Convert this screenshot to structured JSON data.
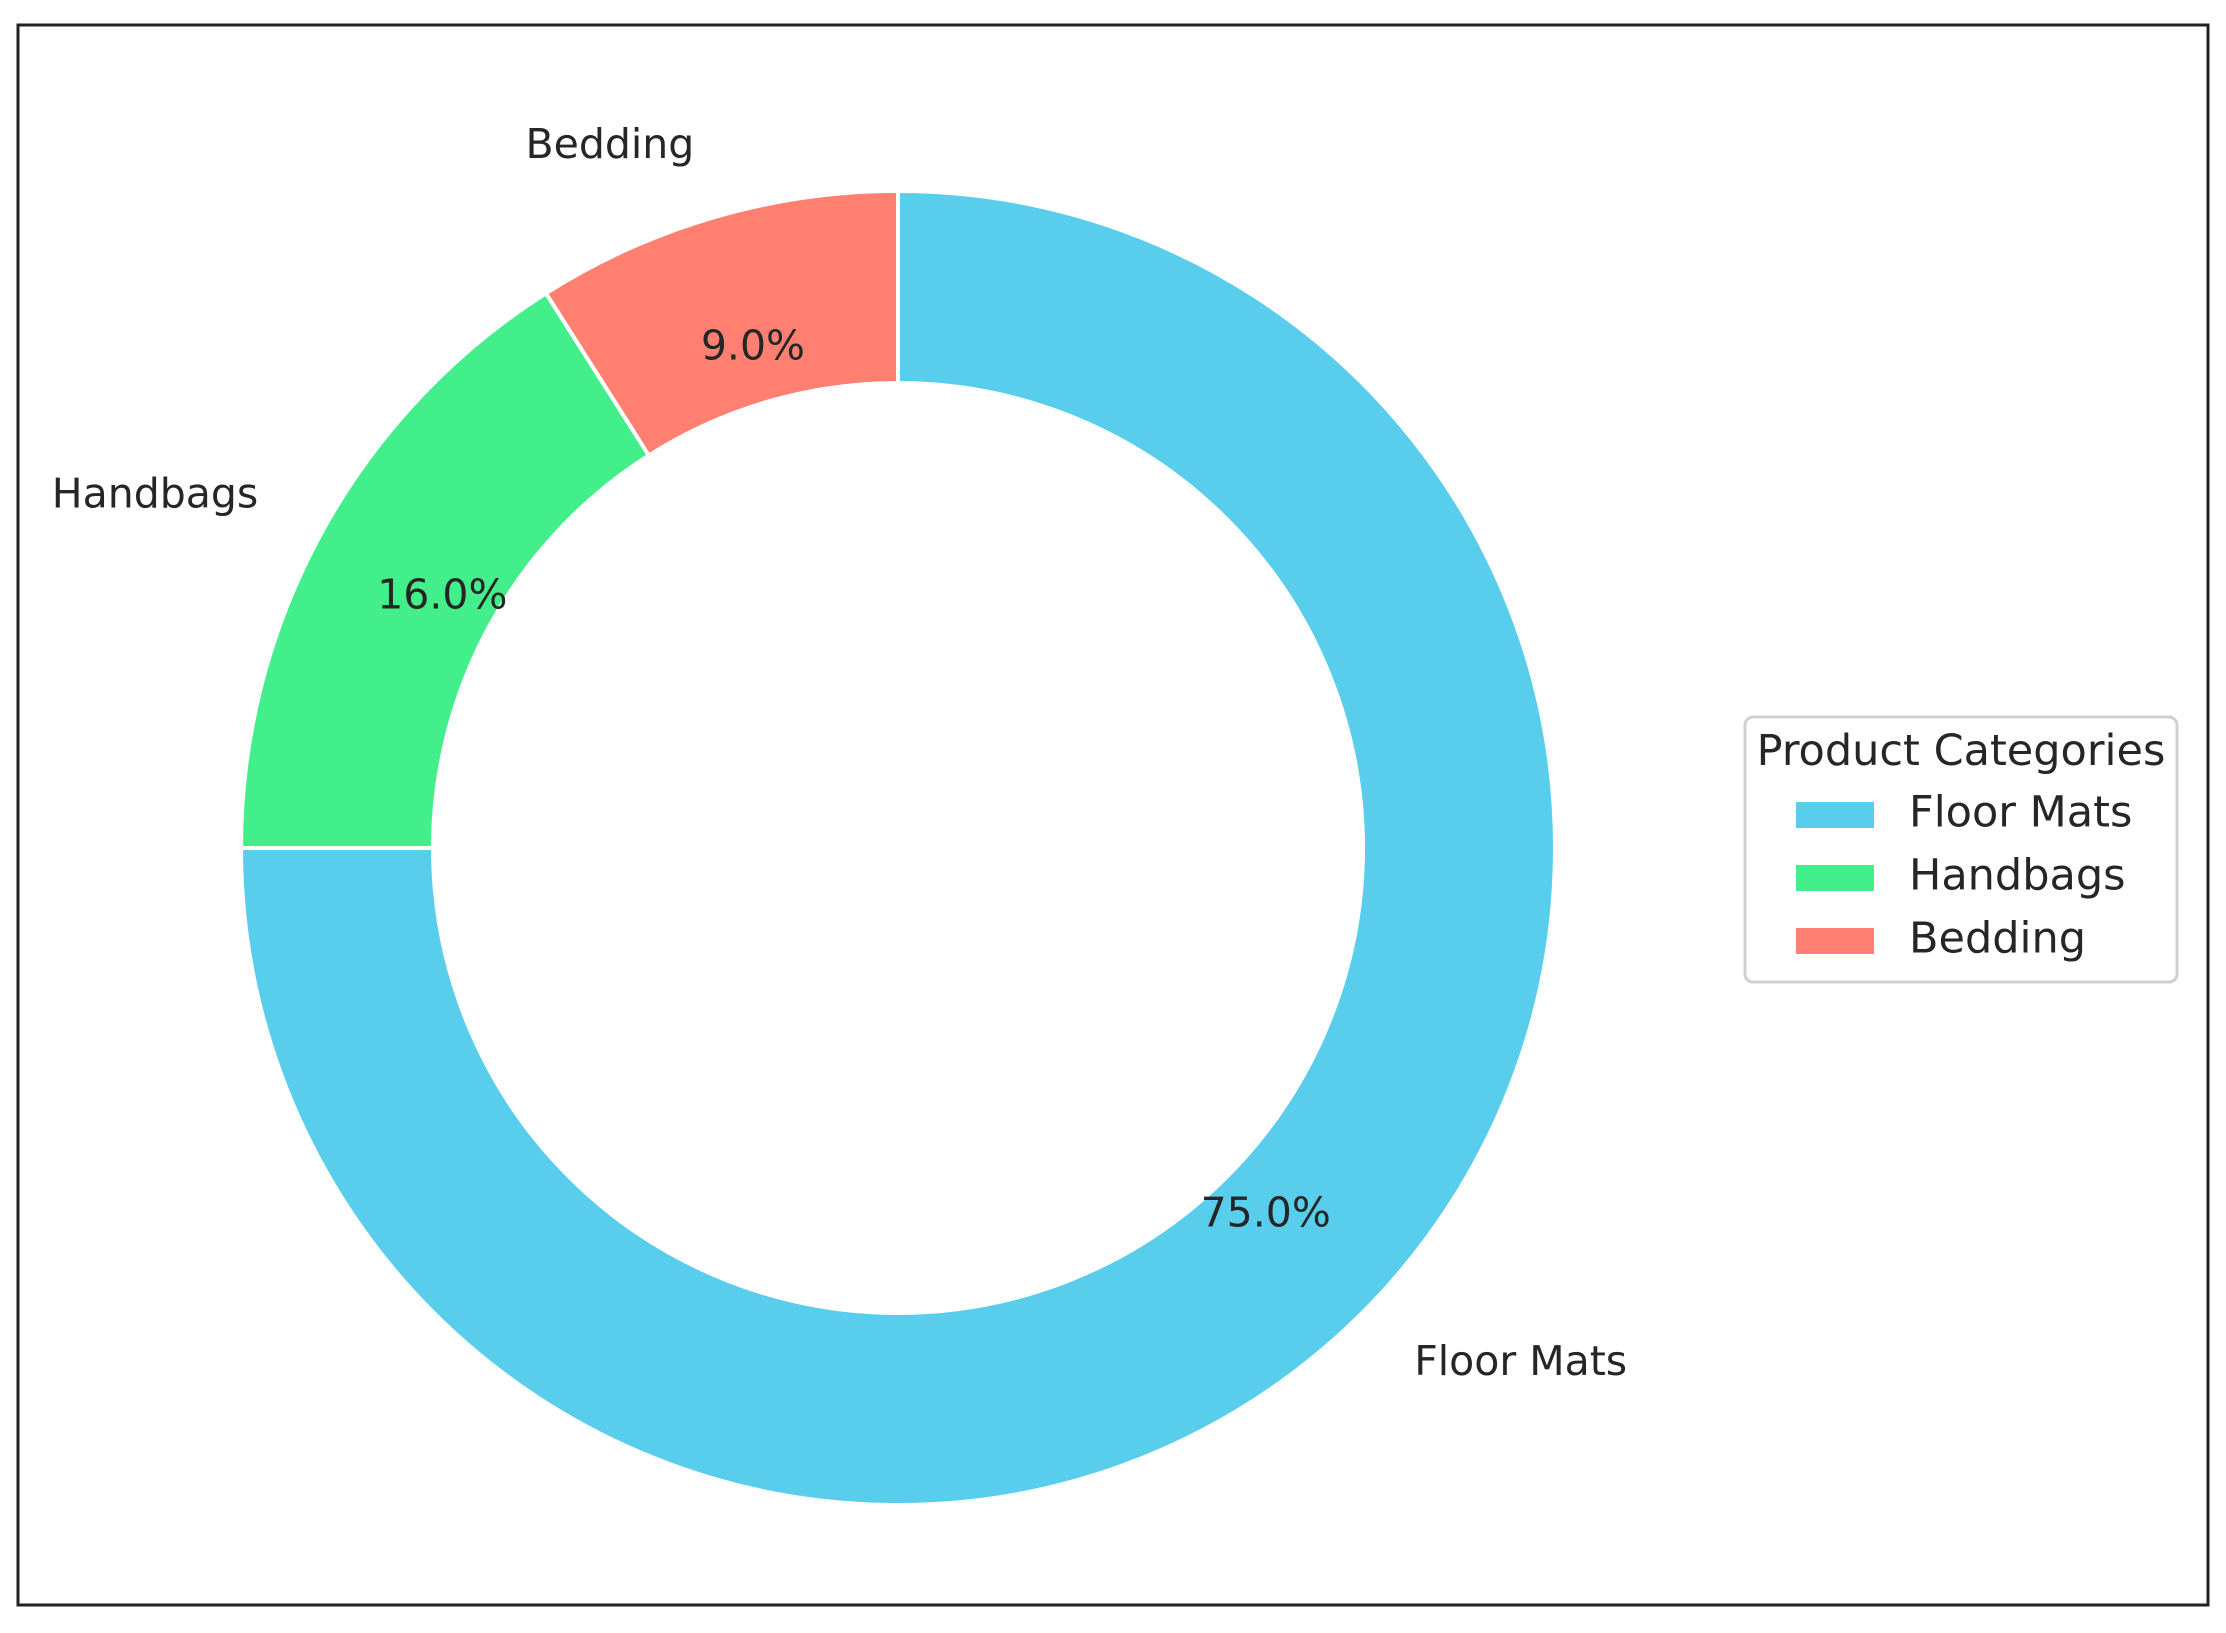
{
  "chart_data": {
    "type": "pie",
    "variant": "donut",
    "title": "",
    "categories": [
      "Floor Mats",
      "Handbags",
      "Bedding"
    ],
    "values": [
      75.0,
      16.0,
      9.0
    ],
    "percent_labels": [
      "75.0%",
      "16.0%",
      "9.0%"
    ],
    "colors": [
      "#58CDEC",
      "#43EF8A",
      "#FF8070"
    ],
    "start_angle_deg": 90,
    "direction": "clockwise",
    "legend": {
      "title": "Product Categories",
      "placement": "center-right",
      "entries": [
        "Floor Mats",
        "Handbags",
        "Bedding"
      ]
    }
  }
}
